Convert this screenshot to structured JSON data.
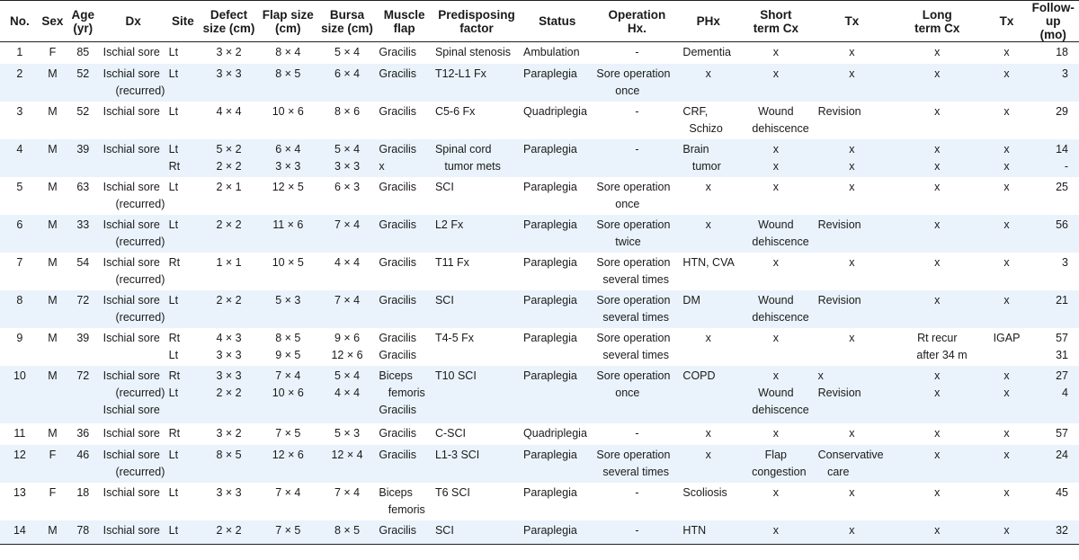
{
  "columns": [
    {
      "key": "no",
      "label": "No."
    },
    {
      "key": "sex",
      "label": "Sex"
    },
    {
      "key": "age",
      "label": "Age\n(yr)"
    },
    {
      "key": "dx",
      "label": "Dx"
    },
    {
      "key": "site",
      "label": "Site"
    },
    {
      "key": "defect",
      "label": "Defect\nsize (cm)"
    },
    {
      "key": "flap",
      "label": "Flap size\n(cm)"
    },
    {
      "key": "bursa",
      "label": "Bursa\nsize (cm)"
    },
    {
      "key": "muscle",
      "label": "Muscle\nflap"
    },
    {
      "key": "factor",
      "label": "Predisposing\nfactor"
    },
    {
      "key": "status",
      "label": "Status"
    },
    {
      "key": "opHx",
      "label": "Operation\nHx."
    },
    {
      "key": "phx",
      "label": "PHx"
    },
    {
      "key": "shortCx",
      "label": "Short\nterm Cx"
    },
    {
      "key": "tx1",
      "label": "Tx"
    },
    {
      "key": "longCx",
      "label": "Long\nterm Cx"
    },
    {
      "key": "tx2",
      "label": "Tx"
    },
    {
      "key": "followup",
      "label": "Follow-up\n(mo)"
    }
  ],
  "rows": [
    {
      "no": "1",
      "sex": "F",
      "age": "85",
      "dx": "Ischial sore",
      "site": "Lt",
      "defect": "3 × 2",
      "flap": "8 × 4",
      "bursa": "5 × 4",
      "muscle": "Gracilis",
      "factor": "Spinal stenosis",
      "status": "Ambulation",
      "opHx": "-",
      "phx": "Dementia",
      "shortCx": "x",
      "tx1": "x",
      "longCx": "x",
      "tx2": "x",
      "followup": "18"
    },
    {
      "no": "2",
      "sex": "M",
      "age": "52",
      "dx": "Ischial sore\n    (recurred)",
      "site": "Lt",
      "defect": "3 × 3",
      "flap": "8 × 5",
      "bursa": "6 × 4",
      "muscle": "Gracilis",
      "factor": "T12-L1 Fx",
      "status": "Paraplegia",
      "opHx": "Sore operation\n      once",
      "phx": "x",
      "shortCx": "x",
      "tx1": "x",
      "longCx": "x",
      "tx2": "x",
      "followup": "3"
    },
    {
      "no": "3",
      "sex": "M",
      "age": "52",
      "dx": "Ischial sore",
      "site": "Lt",
      "defect": "4 × 4",
      "flap": "10 × 6",
      "bursa": "8 × 6",
      "muscle": "Gracilis",
      "factor": "C5-6 Fx",
      "status": "Quadriplegia",
      "opHx": "-",
      "phx": "CRF,\n  Schizo",
      "shortCx": "Wound\n   dehiscence",
      "tx1": "Revision",
      "longCx": "x",
      "tx2": "x",
      "followup": "29"
    },
    {
      "no": "4",
      "sex": "M",
      "age": "39",
      "dx": "Ischial sore",
      "site": "Lt\nRt",
      "defect": "5 × 2\n2 × 2",
      "flap": "6 × 4\n3 × 3",
      "bursa": "5 × 4\n3 × 3",
      "muscle": "Gracilis\nx",
      "factor": "Spinal cord\n   tumor mets",
      "status": "Paraplegia",
      "opHx": "-",
      "phx": "Brain\n   tumor",
      "shortCx": "x\nx",
      "tx1": "x\nx",
      "longCx": "x\nx",
      "tx2": "x\nx",
      "followup": "14\n-"
    },
    {
      "no": "5",
      "sex": "M",
      "age": "63",
      "dx": "Ischial sore\n    (recurred)",
      "site": "Lt",
      "defect": "2 × 1",
      "flap": "12 × 5",
      "bursa": "6 × 3",
      "muscle": "Gracilis",
      "factor": "SCI",
      "status": "Paraplegia",
      "opHx": "Sore operation\n      once",
      "phx": "x",
      "shortCx": "x",
      "tx1": "x",
      "longCx": "x",
      "tx2": "x",
      "followup": "25"
    },
    {
      "no": "6",
      "sex": "M",
      "age": "33",
      "dx": "Ischial sore\n    (recurred)",
      "site": "Lt",
      "defect": "2 × 2",
      "flap": "11 × 6",
      "bursa": "7 × 4",
      "muscle": "Gracilis",
      "factor": "L2 Fx",
      "status": "Paraplegia",
      "opHx": "Sore operation\n      twice",
      "phx": "x",
      "shortCx": "Wound\n   dehiscence",
      "tx1": "Revision",
      "longCx": "x",
      "tx2": "x",
      "followup": "56"
    },
    {
      "no": "7",
      "sex": "M",
      "age": "54",
      "dx": "Ischial sore\n    (recurred)",
      "site": "Rt",
      "defect": "1 × 1",
      "flap": "10 × 5",
      "bursa": "4 × 4",
      "muscle": "Gracilis",
      "factor": "T11 Fx",
      "status": "Paraplegia",
      "opHx": "Sore operation\n  several times",
      "phx": "HTN, CVA",
      "shortCx": "x",
      "tx1": "x",
      "longCx": "x",
      "tx2": "x",
      "followup": "3"
    },
    {
      "no": "8",
      "sex": "M",
      "age": "72",
      "dx": "Ischial sore\n    (recurred)",
      "site": "Lt",
      "defect": "2 × 2",
      "flap": "5 × 3",
      "bursa": "7 × 4",
      "muscle": "Gracilis",
      "factor": "SCI",
      "status": "Paraplegia",
      "opHx": "Sore operation\n  several times",
      "phx": "DM",
      "shortCx": "Wound\n   dehiscence",
      "tx1": "Revision",
      "longCx": "x",
      "tx2": "x",
      "followup": "21"
    },
    {
      "no": "9",
      "sex": "M",
      "age": "39",
      "dx": "Ischial sore",
      "site": "Rt\nLt",
      "defect": "4 × 3\n3 × 3",
      "flap": "8 × 5\n9 × 5",
      "bursa": "9 × 6\n12 × 6",
      "muscle": "Gracilis\nGracilis",
      "factor": "T4-5 Fx",
      "status": "Paraplegia",
      "opHx": "Sore operation\n  several times",
      "phx": "x",
      "shortCx": "x",
      "tx1": "x",
      "longCx": "Rt recur\n   after 34 m",
      "tx2": "IGAP",
      "followup": "57\n31"
    },
    {
      "no": "10",
      "sex": "M",
      "age": "72",
      "dx": "Ischial sore\n    (recurred)\nIschial sore",
      "site": "Rt\nLt",
      "defect": "3 × 3\n2 × 2",
      "flap": "7 × 4\n10 × 6",
      "bursa": "5 × 4\n4 × 4",
      "muscle": "Biceps\n   femoris\nGracilis",
      "factor": "T10 SCI",
      "status": "Paraplegia",
      "opHx": "Sore operation\n      once",
      "phx": "COPD",
      "shortCx": "x\nWound\n   dehiscence",
      "tx1": "x\nRevision",
      "longCx": "x\nx",
      "tx2": "x\nx",
      "followup": "27\n4"
    },
    {
      "no": "11",
      "sex": "M",
      "age": "36",
      "dx": "Ischial sore",
      "site": "Rt",
      "defect": "3 × 2",
      "flap": "7 × 5",
      "bursa": "5 × 3",
      "muscle": "Gracilis",
      "factor": "C-SCI",
      "status": "Quadriplegia",
      "opHx": "-",
      "phx": "x",
      "shortCx": "x",
      "tx1": "x",
      "longCx": "x",
      "tx2": "x",
      "followup": "57"
    },
    {
      "no": "12",
      "sex": "F",
      "age": "46",
      "dx": "Ischial sore\n    (recurred)",
      "site": "Lt",
      "defect": "8 × 5",
      "flap": "12 × 6",
      "bursa": "12 × 4",
      "muscle": "Gracilis",
      "factor": "L1-3 SCI",
      "status": "Paraplegia",
      "opHx": "Sore operation\n  several times",
      "phx": "x",
      "shortCx": "Flap\n  congestion",
      "tx1": "Conservative\n   care",
      "longCx": "x",
      "tx2": "x",
      "followup": "24"
    },
    {
      "no": "13",
      "sex": "F",
      "age": "18",
      "dx": "Ischial sore",
      "site": "Lt",
      "defect": "3 × 3",
      "flap": "7 × 4",
      "bursa": "7 × 4",
      "muscle": "Biceps\n   femoris",
      "factor": "T6 SCI",
      "status": "Paraplegia",
      "opHx": "-",
      "phx": "Scoliosis",
      "shortCx": "x",
      "tx1": "x",
      "longCx": "x",
      "tx2": "x",
      "followup": "45"
    },
    {
      "no": "14",
      "sex": "M",
      "age": "78",
      "dx": "Ischial sore",
      "site": "Lt",
      "defect": "2 × 2",
      "flap": "7 × 5",
      "bursa": "8 × 5",
      "muscle": "Gracilis",
      "factor": "SCI",
      "status": "Paraplegia",
      "opHx": "-",
      "phx": "HTN",
      "shortCx": "x",
      "tx1": "x",
      "longCx": "x",
      "tx2": "x",
      "followup": "32"
    }
  ]
}
